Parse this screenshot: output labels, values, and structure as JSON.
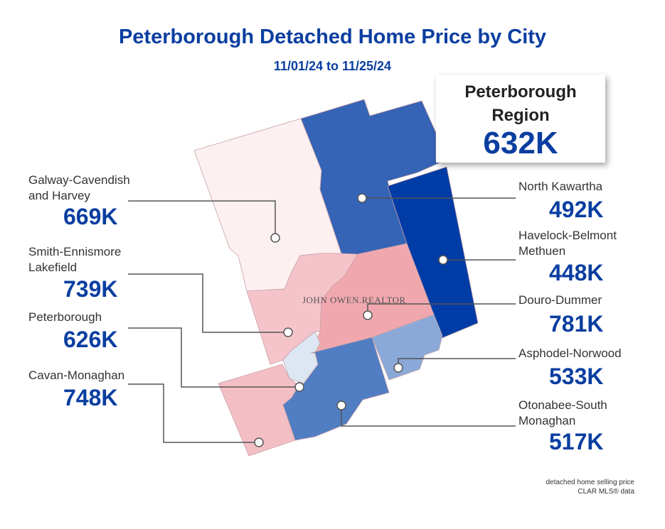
{
  "title": "Peterborough Detached Home Price by City",
  "subtitle": "11/01/24 to 11/25/24",
  "region": {
    "name_line1": "Peterborough",
    "name_line2": "Region",
    "value": "632K"
  },
  "watermark": "JOHN OWEN.REALTOR",
  "cities": [
    {
      "line1": "Galway-Cavendish",
      "line2": "and Harvey",
      "value": "669K",
      "color": "#fcf0f1"
    },
    {
      "line1": "Smith-Ennismore",
      "line2": "Lakefield",
      "value": "739K",
      "color": "#f5c4ca"
    },
    {
      "line1": "Peterborough",
      "line2": "",
      "value": "626K",
      "color": "#dde6f3"
    },
    {
      "line1": "Cavan-Monaghan",
      "line2": "",
      "value": "748K",
      "color": "#f3bfc5"
    },
    {
      "line1": "North Kawartha",
      "line2": "",
      "value": "492K",
      "color": "#3563b5"
    },
    {
      "line1": "Havelock-Belmont",
      "line2": "Methuen",
      "value": "448K",
      "color": "#003ca6"
    },
    {
      "line1": "Douro-Dummer",
      "line2": "",
      "value": "781K",
      "color": "#f0a8ae"
    },
    {
      "line1": "Asphodel-Norwood",
      "line2": "",
      "value": "533K",
      "color": "#8aa9d8"
    },
    {
      "line1": "Otonabee-South",
      "line2": "Monaghan",
      "value": "517K",
      "color": "#517ec2"
    }
  ],
  "note": {
    "line1": "detached home selling price",
    "line2": "CLAR MLS® data"
  }
}
